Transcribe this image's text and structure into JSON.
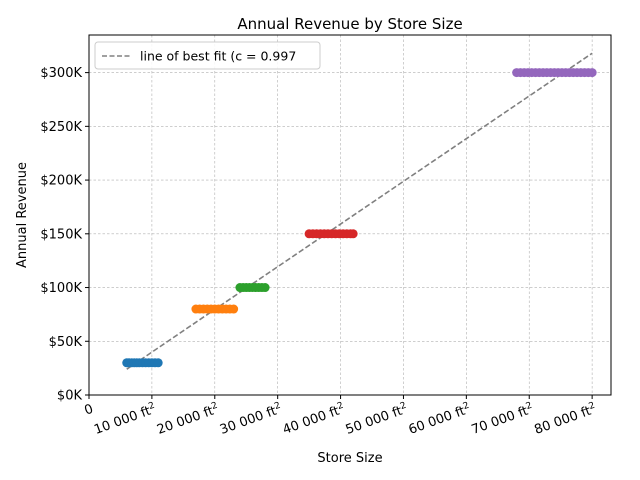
{
  "chart_data": {
    "type": "scatter",
    "title": "Annual Revenue by Store Size",
    "xlabel": "Store Size",
    "ylabel": "Annual Revenue",
    "xlim": [
      0,
      83000
    ],
    "ylim": [
      0,
      335000
    ],
    "grid": true,
    "legend_placement": "top-left",
    "x_ticks": [
      {
        "value": 0,
        "label": "0",
        "sup": ""
      },
      {
        "value": 10000,
        "label": "10 000 ft",
        "sup": "2"
      },
      {
        "value": 20000,
        "label": "20 000 ft",
        "sup": "2"
      },
      {
        "value": 30000,
        "label": "30 000 ft",
        "sup": "2"
      },
      {
        "value": 40000,
        "label": "40 000 ft",
        "sup": "2"
      },
      {
        "value": 50000,
        "label": "50 000 ft",
        "sup": "2"
      },
      {
        "value": 60000,
        "label": "60 000 ft",
        "sup": "2"
      },
      {
        "value": 70000,
        "label": "70 000 ft",
        "sup": "2"
      },
      {
        "value": 80000,
        "label": "80 000 ft",
        "sup": "2"
      }
    ],
    "y_ticks": [
      {
        "value": 0,
        "label": "$0K"
      },
      {
        "value": 50000,
        "label": "$50K"
      },
      {
        "value": 100000,
        "label": "$100K"
      },
      {
        "value": 150000,
        "label": "$150K"
      },
      {
        "value": 200000,
        "label": "$200K"
      },
      {
        "value": 250000,
        "label": "$250K"
      },
      {
        "value": 300000,
        "label": "$300K"
      }
    ],
    "series": [
      {
        "color": "#1f77b4",
        "y": 30000,
        "x": [
          6000,
          6400,
          6800,
          7200,
          7600,
          8000,
          8500,
          9000,
          9500,
          10000,
          10500,
          11000
        ]
      },
      {
        "color": "#ff7f0e",
        "y": 80000,
        "x": [
          17000,
          17600,
          18200,
          18800,
          19400,
          20000,
          20600,
          21200,
          21800,
          22400,
          23000
        ]
      },
      {
        "color": "#2ca02c",
        "y": 100000,
        "x": [
          24000,
          24500,
          25000,
          25500,
          26000,
          26500,
          27000,
          27500,
          28000
        ]
      },
      {
        "color": "#d62728",
        "y": 150000,
        "x": [
          35000,
          35600,
          36200,
          36800,
          37400,
          38000,
          38600,
          39200,
          39800,
          40400,
          41000,
          41600,
          42000
        ]
      },
      {
        "color": "#9467bd",
        "y": 300000,
        "x": [
          68000,
          68600,
          69200,
          69800,
          70400,
          71000,
          71600,
          72200,
          72800,
          73400,
          74000,
          74600,
          75200,
          75800,
          76400,
          77000,
          77600,
          78200,
          78800,
          79400,
          80000
        ]
      }
    ],
    "fit_line": {
      "label": "line of best fit (c = 0.997",
      "color": "#808080",
      "x": [
        6000,
        80000
      ],
      "y": [
        24000,
        318000
      ]
    }
  }
}
